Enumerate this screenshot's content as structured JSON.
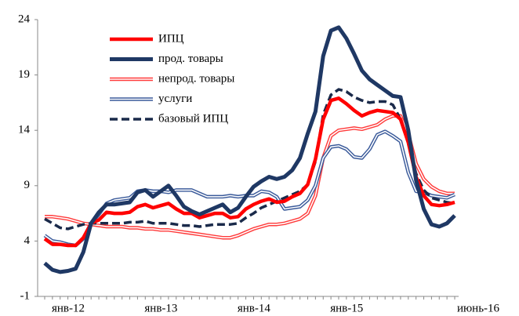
{
  "chart_data": {
    "type": "line",
    "categories": [
      "янв-12",
      null,
      null,
      null,
      null,
      null,
      null,
      null,
      null,
      null,
      null,
      null,
      "янв-13",
      null,
      null,
      null,
      null,
      null,
      null,
      null,
      null,
      null,
      null,
      null,
      "янв-14",
      null,
      null,
      null,
      null,
      null,
      null,
      null,
      null,
      null,
      null,
      null,
      "янв-15",
      null,
      null,
      null,
      null,
      null,
      null,
      null,
      null,
      null,
      null,
      null,
      null,
      null,
      null,
      null,
      null,
      "июнь-16"
    ],
    "ylim": [
      -1,
      24
    ],
    "yticks": [
      -1,
      4,
      9,
      14,
      19,
      24
    ],
    "series": [
      {
        "name": "ИПЦ",
        "color": "#ff0000",
        "style": "solid",
        "values": [
          4.2,
          3.7,
          3.7,
          3.6,
          3.6,
          4.3,
          5.6,
          5.9,
          6.6,
          6.5,
          6.5,
          6.6,
          7.1,
          7.3,
          7.0,
          7.2,
          7.4,
          6.9,
          6.5,
          6.5,
          6.1,
          6.3,
          6.5,
          6.5,
          6.1,
          6.2,
          6.9,
          7.3,
          7.6,
          7.8,
          7.5,
          7.6,
          8.0,
          8.3,
          9.1,
          11.4,
          15.0,
          16.7,
          16.9,
          16.4,
          15.8,
          15.3,
          15.6,
          15.8,
          15.7,
          15.6,
          15.0,
          12.9,
          9.8,
          8.1,
          7.3,
          7.2,
          7.3,
          7.5
        ]
      },
      {
        "name": "прод. товары",
        "color": "#1f3864",
        "style": "solid",
        "values": [
          2.0,
          1.4,
          1.2,
          1.3,
          1.5,
          3.0,
          5.6,
          6.6,
          7.3,
          7.3,
          7.4,
          7.5,
          8.4,
          8.6,
          8.0,
          8.5,
          9.0,
          8.1,
          7.1,
          6.7,
          6.4,
          6.7,
          7.0,
          7.3,
          6.6,
          7.0,
          8.0,
          8.9,
          9.4,
          9.8,
          9.6,
          9.8,
          10.4,
          11.5,
          13.7,
          15.7,
          20.7,
          23.0,
          23.3,
          22.3,
          20.9,
          19.4,
          18.6,
          18.1,
          17.6,
          17.1,
          17.0,
          14.0,
          9.5,
          6.9,
          5.5,
          5.3,
          5.6,
          6.3
        ]
      },
      {
        "name": "непрод. товары",
        "color": "#ff3b3b",
        "style": "double",
        "values": [
          6.2,
          6.2,
          6.1,
          6.0,
          5.8,
          5.6,
          5.5,
          5.4,
          5.3,
          5.3,
          5.3,
          5.2,
          5.2,
          5.1,
          5.1,
          5.0,
          5.0,
          4.9,
          4.8,
          4.7,
          4.6,
          4.5,
          4.4,
          4.3,
          4.3,
          4.5,
          4.8,
          5.1,
          5.3,
          5.5,
          5.5,
          5.6,
          5.8,
          6.0,
          6.5,
          8.1,
          11.5,
          13.5,
          14.0,
          14.1,
          14.2,
          14.1,
          14.3,
          14.5,
          15.0,
          15.3,
          15.3,
          13.7,
          11.0,
          9.6,
          8.9,
          8.5,
          8.3,
          8.3
        ]
      },
      {
        "name": "услуги",
        "color": "#3a5a9a",
        "style": "double",
        "values": [
          4.5,
          4.0,
          3.9,
          3.7,
          3.6,
          4.2,
          5.6,
          6.4,
          7.4,
          7.7,
          7.8,
          7.9,
          8.5,
          8.6,
          8.5,
          8.5,
          8.4,
          8.6,
          8.6,
          8.6,
          8.3,
          8.0,
          8.0,
          8.0,
          8.1,
          8.0,
          8.1,
          8.1,
          8.5,
          8.4,
          8.0,
          6.9,
          7.0,
          7.1,
          7.7,
          9.0,
          11.5,
          12.5,
          12.6,
          12.3,
          11.6,
          11.5,
          12.3,
          13.6,
          13.9,
          13.5,
          13.0,
          10.2,
          8.5,
          8.4,
          8.1,
          8.0,
          7.9,
          8.2
        ]
      },
      {
        "name": "базовый ИПЦ",
        "color": "#1a2a4a",
        "style": "dashed",
        "values": [
          6.0,
          5.6,
          5.2,
          5.1,
          5.3,
          5.5,
          5.6,
          5.6,
          5.6,
          5.6,
          5.6,
          5.7,
          5.7,
          5.8,
          5.6,
          5.6,
          5.6,
          5.5,
          5.4,
          5.4,
          5.3,
          5.4,
          5.5,
          5.5,
          5.5,
          5.6,
          6.1,
          6.5,
          7.0,
          7.3,
          7.6,
          7.9,
          8.2,
          8.5,
          9.1,
          11.2,
          15.4,
          17.2,
          17.7,
          17.5,
          17.0,
          16.7,
          16.5,
          16.6,
          16.6,
          16.3,
          15.0,
          12.9,
          10.1,
          8.6,
          7.9,
          7.7,
          7.5,
          7.4
        ]
      }
    ]
  }
}
